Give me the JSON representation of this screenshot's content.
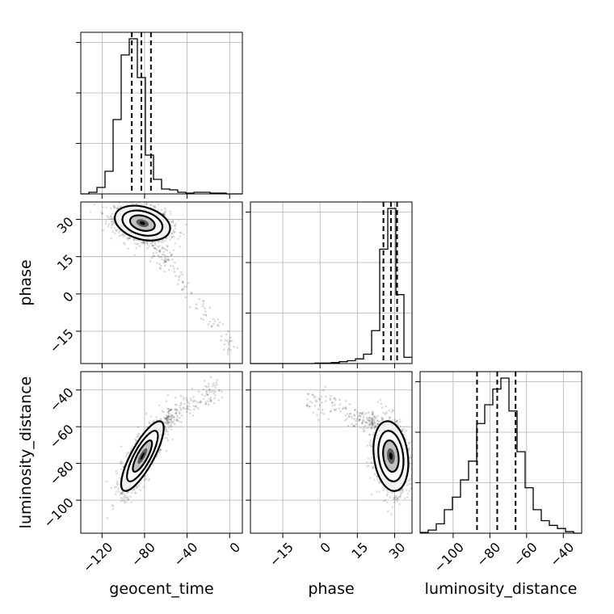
{
  "chart_data": {
    "type": "corner",
    "parameters": [
      "geocent_time",
      "phase",
      "luminosity_distance"
    ],
    "axis_labels": {
      "x": [
        "geocent_time",
        "phase",
        "luminosity_distance"
      ],
      "y": [
        "phase",
        "luminosity_distance"
      ]
    },
    "ranges": {
      "geocent_time": [
        -140,
        12
      ],
      "phase": [
        -28,
        37
      ],
      "luminosity_distance": [
        -118,
        -30
      ]
    },
    "ticks": {
      "geocent_time": [
        -120,
        -80,
        -40,
        0
      ],
      "phase": [
        -15,
        0,
        15,
        30
      ],
      "luminosity_distance": [
        -100,
        -80,
        -60,
        -40
      ]
    },
    "tick_labels": {
      "geocent_time": [
        "−120",
        "−80",
        "−40",
        "0"
      ],
      "phase": [
        "−15",
        "0",
        "15",
        "30"
      ],
      "luminosity_distance": [
        "−100",
        "−80",
        "−60",
        "−40"
      ]
    },
    "grid": true,
    "histograms": {
      "geocent_time": {
        "bin_edges": [
          -140,
          -132.4,
          -124.8,
          -117.2,
          -109.6,
          -102,
          -94.4,
          -86.8,
          -79.2,
          -71.6,
          -64,
          -56.4,
          -48.8,
          -41.2,
          -33.6,
          -26,
          -18.4,
          -10.8,
          -3.2,
          4.4,
          12
        ],
        "counts": [
          0,
          0.01,
          0.04,
          0.14,
          0.46,
          0.86,
          0.96,
          0.72,
          0.24,
          0.09,
          0.03,
          0.025,
          0.01,
          0.005,
          0.01,
          0.01,
          0.005,
          0.005,
          0,
          0
        ],
        "quantiles": [
          -92,
          -83,
          -74
        ]
      },
      "phase": {
        "bin_edges": [
          -28,
          -24.75,
          -21.5,
          -18.25,
          -15,
          -11.75,
          -8.5,
          -5.25,
          -2,
          1.25,
          4.5,
          7.75,
          11,
          14.25,
          17.5,
          20.75,
          24,
          27.25,
          30.5,
          33.75,
          37
        ],
        "counts": [
          0,
          0,
          0,
          0,
          0,
          0,
          0,
          0,
          0.003,
          0.003,
          0.006,
          0.012,
          0.018,
          0.03,
          0.06,
          0.21,
          0.73,
          0.99,
          0.44,
          0.04
        ],
        "quantiles": [
          25.5,
          28.5,
          31
        ]
      },
      "luminosity_distance": {
        "bin_edges": [
          -118,
          -113.6,
          -109.2,
          -104.8,
          -100.4,
          -96,
          -91.6,
          -87.2,
          -82.8,
          -78.4,
          -74,
          -69.6,
          -65.2,
          -60.8,
          -56.4,
          -52,
          -47.6,
          -43.2,
          -38.8,
          -34.4,
          -30
        ],
        "counts": [
          0.005,
          0.02,
          0.06,
          0.15,
          0.23,
          0.34,
          0.46,
          0.7,
          0.82,
          0.92,
          0.99,
          0.78,
          0.52,
          0.29,
          0.15,
          0.08,
          0.05,
          0.03,
          0.01,
          0
        ],
        "quantiles": [
          -87,
          -76,
          -66
        ]
      }
    },
    "joint": [
      {
        "x": "geocent_time",
        "y": "phase",
        "mean": [
          -82,
          28.5
        ],
        "sd": [
          13,
          3.5
        ],
        "rho": -0.3,
        "tail": {
          "from": [
            -75,
            22
          ],
          "to": [
            5,
            -24
          ]
        }
      },
      {
        "x": "geocent_time",
        "y": "luminosity_distance",
        "mean": [
          -82,
          -76
        ],
        "sd": [
          10,
          9.5
        ],
        "rho": 0.8,
        "tail": {
          "from": [
            -60,
            -55
          ],
          "to": [
            -10,
            -40
          ]
        }
      },
      {
        "x": "phase",
        "y": "luminosity_distance",
        "mean": [
          28.5,
          -76
        ],
        "sd": [
          3.5,
          9.5
        ],
        "rho": -0.2,
        "tail": {
          "from": [
            22,
            -58
          ],
          "to": [
            -5,
            -45
          ]
        }
      }
    ]
  }
}
